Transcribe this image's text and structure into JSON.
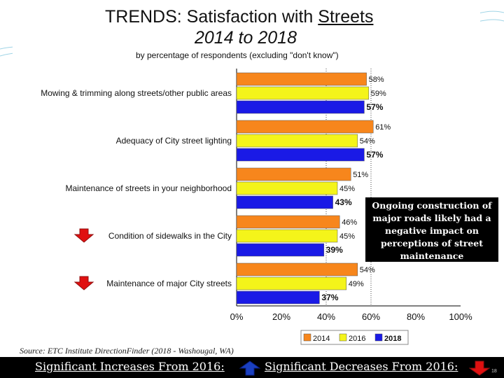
{
  "title": {
    "prefix": "TRENDS:  Satisfaction with ",
    "underlined": "Streets",
    "line2": "2014 to 2018"
  },
  "subtitle": "by percentage of respondents (excluding \"don't know\")",
  "colors": {
    "y2014": "#f7861c",
    "y2016": "#f4f41a",
    "y2018": "#1a1ae6",
    "decrease_arrow": "#e01010",
    "increase_arrow": "#1a3fbf"
  },
  "chart_data": {
    "type": "bar",
    "orientation": "horizontal",
    "categories": [
      "Mowing & trimming along streets/other public areas",
      "Adequacy of City street lighting",
      "Maintenance of streets in your neighborhood",
      "Condition of sidewalks in the City",
      "Maintenance of major City streets"
    ],
    "series": [
      {
        "name": "2014",
        "values": [
          58,
          61,
          51,
          46,
          54
        ],
        "labels": [
          "58%",
          "61%",
          "51%",
          "46%",
          "54%"
        ]
      },
      {
        "name": "2016",
        "values": [
          59,
          54,
          45,
          45,
          49
        ],
        "labels": [
          "59%",
          "54%",
          "45%",
          "45%",
          "49%"
        ]
      },
      {
        "name": "2018",
        "values": [
          57,
          57,
          43,
          39,
          37
        ],
        "labels": [
          "57%",
          "57%",
          "43%",
          "39%",
          "37%"
        ]
      }
    ],
    "xlim": [
      0,
      100
    ],
    "xticks": [
      "0%",
      "20%",
      "40%",
      "60%",
      "80%",
      "100%"
    ],
    "reference_lines": [
      40,
      60
    ],
    "legend_position": "bottom",
    "decrease_flags": [
      false,
      false,
      false,
      true,
      true
    ]
  },
  "callout": "Ongoing construction of major roads likely had a negative impact on perceptions of street maintenance",
  "source": "Source:  ETC Institute DirectionFinder (2018 - Washougal, WA)",
  "footer": {
    "increases": "Significant Increases From 2016:",
    "decreases": "Significant Decreases From 2016:"
  },
  "page_number": "18"
}
